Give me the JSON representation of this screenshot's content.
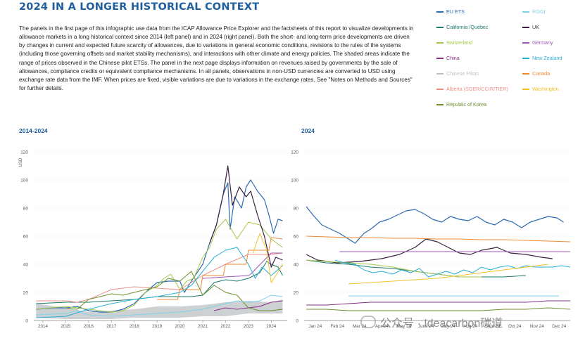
{
  "page": {
    "title": "2024 IN A LONGER HISTORICAL CONTEXT",
    "intro": "The panels in the first page of this infographic use data from the ICAP Allowance Price Explorer and the factsheets of this report to visualize developments in allowance markets in a long historical context since 2014 (left panel) and in 2024 (right panel). Both the short- and long-term price developments are driven by changes in current and expected future scarcity of allowances, due to variations in general economic conditions, revisions to the rules of the systems (including those governing offsets and market stability mechanisms), and interactions with other climate and energy policies. The shaded areas indicate the range of prices observed in the Chinese pilot ETSs. The panel in the next page displays information on revenues raised by governments by the sale of allowances, compliance credits or equivalent compliance mechanisms. In all panels, observations in non-USD currencies are converted to USD using exchange rate data from the IMF. When prices are fixed, visible variations are due to variations in the exchange rates. See \"Notes on Methods and Sources\" for further details."
  },
  "watermark": "公众号 · Ideacarbon碳道",
  "legend": [
    {
      "label": "EU ETS",
      "color": "#2a6bb0"
    },
    {
      "label": "RGGI",
      "color": "#7fd3e8"
    },
    {
      "label": "California /Québec",
      "color": "#1b7a6a"
    },
    {
      "label": "UK",
      "color": "#3a1f3f"
    },
    {
      "label": "Switzerland",
      "color": "#a6c84a"
    },
    {
      "label": "Germany",
      "color": "#9c55b4"
    },
    {
      "label": "China",
      "color": "#8a2d84"
    },
    {
      "label": "New Zealand",
      "color": "#27aed6"
    },
    {
      "label": "Chinese Pilots",
      "color": "#bcc1c4"
    },
    {
      "label": "Canada",
      "color": "#ee8a35"
    },
    {
      "label": "Alberta (SGER/CCIR/TIER)",
      "color": "#ec8f88"
    },
    {
      "label": "Washington",
      "color": "#f2c32a"
    },
    {
      "label": "Republic of Korea",
      "color": "#6e8f2c"
    }
  ],
  "chart_data": [
    {
      "type": "line",
      "title": "2014-2024",
      "ylabel": "USD",
      "ylim": [
        0,
        120
      ],
      "yticks": [
        0,
        20,
        40,
        60,
        80,
        100,
        120
      ],
      "xlim": [
        2013.6,
        2024.7
      ],
      "xticks": [
        "2014",
        "2015",
        "2016",
        "2017",
        "2018",
        "2019",
        "2020",
        "2021",
        "2022",
        "2023",
        "2024"
      ],
      "grid": true,
      "shaded_band": {
        "name": "Chinese Pilots",
        "x": [
          2013.7,
          2015,
          2016,
          2017,
          2018,
          2019,
          2020,
          2021,
          2022,
          2023,
          2024,
          2024.5
        ],
        "low": [
          2,
          1,
          1,
          1,
          2,
          2,
          2,
          3,
          3,
          5,
          5,
          5
        ],
        "high": [
          12,
          9,
          6,
          7,
          8,
          10,
          10,
          11,
          13,
          14,
          13,
          15
        ]
      },
      "series": [
        {
          "name": "EU ETS",
          "x": [
            2013.7,
            2014.5,
            2015,
            2015.5,
            2016,
            2016.5,
            2017,
            2017.5,
            2018,
            2018.3,
            2018.7,
            2019,
            2019.5,
            2020,
            2020.2,
            2020.5,
            2021,
            2021.3,
            2021.6,
            2021.9,
            2022.1,
            2022.2,
            2022.4,
            2022.7,
            2022.9,
            2023.1,
            2023.4,
            2023.7,
            2023.9,
            2024.1,
            2024.3,
            2024.5
          ],
          "y": [
            8,
            9,
            9,
            10,
            7,
            6,
            6,
            8,
            12,
            17,
            23,
            27,
            28,
            28,
            20,
            28,
            40,
            55,
            68,
            90,
            98,
            65,
            88,
            80,
            95,
            100,
            92,
            86,
            75,
            62,
            72,
            71
          ]
        },
        {
          "name": "California /Québec",
          "x": [
            2013.7,
            2015,
            2016,
            2017,
            2018,
            2019,
            2020,
            2020.5,
            2021,
            2021.5,
            2022,
            2022.5,
            2023,
            2023.5,
            2023.8,
            2024,
            2024.3,
            2024.5
          ],
          "y": [
            12,
            13,
            13,
            14,
            15,
            17,
            17,
            17,
            18,
            27,
            29,
            28,
            30,
            34,
            42,
            40,
            38,
            32
          ]
        },
        {
          "name": "Switzerland",
          "x": [
            2013.7,
            2015,
            2016,
            2017,
            2017.5,
            2018,
            2018.5,
            2019,
            2019.3,
            2019.6,
            2020,
            2020.3,
            2020.6,
            2021,
            2021.3,
            2021.6,
            2022,
            2022.5,
            2023,
            2023.5,
            2024,
            2024.5
          ],
          "y": [
            8,
            10,
            8,
            6,
            7,
            11,
            20,
            25,
            30,
            33,
            22,
            28,
            30,
            45,
            52,
            65,
            72,
            58,
            70,
            68,
            58,
            52
          ]
        },
        {
          "name": "China",
          "x": [
            2021.5,
            2022,
            2022.5,
            2023,
            2023.5,
            2024,
            2024.5
          ],
          "y": [
            7,
            9,
            8,
            9,
            10,
            13,
            14
          ]
        },
        {
          "name": "Alberta (SGER/CCIR/TIER)",
          "x": [
            2013.7,
            2015,
            2015.5,
            2016,
            2017,
            2018,
            2019,
            2020,
            2021,
            2022,
            2023,
            2024,
            2024.5
          ],
          "y": [
            14,
            14,
            13,
            15,
            22,
            24,
            23,
            22,
            32,
            40,
            47,
            47,
            48
          ]
        },
        {
          "name": "Republic of Korea",
          "x": [
            2015,
            2015.5,
            2016,
            2017,
            2017.5,
            2018,
            2019,
            2019.5,
            2020,
            2020.5,
            2021,
            2021.5,
            2022,
            2022.5,
            2023,
            2023.5,
            2024,
            2024.5
          ],
          "y": [
            9,
            8,
            15,
            19,
            18,
            20,
            24,
            30,
            28,
            35,
            18,
            25,
            20,
            18,
            9,
            7,
            7,
            8
          ]
        },
        {
          "name": "RGGI",
          "x": [
            2013.7,
            2015,
            2015.5,
            2016,
            2017,
            2018,
            2019,
            2020,
            2021,
            2021.5,
            2022,
            2022.5,
            2023,
            2023.5,
            2024,
            2024.5
          ],
          "y": [
            4,
            5,
            7,
            4,
            3,
            4,
            5,
            6,
            8,
            10,
            12,
            14,
            13,
            14,
            18,
            17
          ]
        },
        {
          "name": "UK",
          "x": [
            2021.3,
            2021.6,
            2021.9,
            2022.1,
            2022.3,
            2022.6,
            2022.9,
            2023.1,
            2023.4,
            2023.7,
            2024,
            2024.2,
            2024.5
          ],
          "y": [
            55,
            68,
            90,
            110,
            82,
            95,
            88,
            92,
            75,
            60,
            38,
            45,
            43
          ]
        },
        {
          "name": "Germany",
          "x": [
            2021,
            2022,
            2023,
            2023.1,
            2024,
            2024.5
          ],
          "y": [
            30,
            31,
            32,
            33,
            48,
            48
          ]
        },
        {
          "name": "New Zealand",
          "x": [
            2013.7,
            2015,
            2016,
            2017,
            2018,
            2019,
            2020,
            2020.5,
            2021,
            2021.5,
            2022,
            2022.5,
            2023,
            2023.3,
            2023.6,
            2024,
            2024.5
          ],
          "y": [
            2,
            3,
            8,
            12,
            15,
            17,
            20,
            25,
            35,
            45,
            50,
            52,
            40,
            30,
            38,
            32,
            39
          ]
        },
        {
          "name": "Canada",
          "x": [
            2019,
            2019.9,
            2020,
            2020.9,
            2021,
            2021.9,
            2022,
            2022.9,
            2023,
            2023.9,
            2024,
            2024.5
          ],
          "y": [
            15,
            15,
            22,
            22,
            32,
            32,
            40,
            40,
            50,
            50,
            59,
            58
          ]
        },
        {
          "name": "Washington",
          "x": [
            2023.2,
            2023.5,
            2023.8,
            2024,
            2024.2,
            2024.5
          ],
          "y": [
            48,
            62,
            50,
            27,
            32,
            40
          ]
        }
      ]
    },
    {
      "type": "line",
      "title": "2024",
      "ylim": [
        0,
        120
      ],
      "yticks": [
        0,
        20,
        40,
        60,
        80,
        100,
        120
      ],
      "xlim": [
        0,
        12
      ],
      "xticks": [
        "Jan 24",
        "Feb 24",
        "Mar 24",
        "Apr 24",
        "May 24",
        "June 24",
        "July 24",
        "Aug 24",
        "Sept 24",
        "Oct 24",
        "Nov 24",
        "Dec 24"
      ],
      "grid": true,
      "series": [
        {
          "name": "EU ETS",
          "x": [
            0.1,
            0.4,
            0.8,
            1.2,
            1.6,
            2.0,
            2.3,
            2.7,
            3.0,
            3.4,
            3.8,
            4.2,
            4.6,
            5.0,
            5.4,
            5.8,
            6.2,
            6.6,
            7.0,
            7.4,
            7.8,
            8.2,
            8.6,
            9.0,
            9.4,
            9.8,
            10.2,
            10.6,
            11.0,
            11.4,
            11.7
          ],
          "y": [
            81,
            75,
            68,
            65,
            62,
            58,
            55,
            62,
            65,
            70,
            72,
            75,
            78,
            79,
            76,
            72,
            70,
            74,
            72,
            71,
            74,
            70,
            68,
            72,
            70,
            66,
            70,
            72,
            74,
            73,
            70
          ]
        },
        {
          "name": "UK",
          "x": [
            0.1,
            0.6,
            1.5,
            2.5,
            3.5,
            4.3,
            5.0,
            5.5,
            6.0,
            6.5,
            7.0,
            7.5,
            8.0,
            8.7,
            9.3,
            10.0,
            10.7,
            11.2
          ],
          "y": [
            47,
            43,
            41,
            42,
            44,
            47,
            52,
            58,
            56,
            52,
            48,
            47,
            50,
            52,
            48,
            47,
            45,
            44
          ]
        },
        {
          "name": "California /Québec",
          "x": [
            0.1,
            1,
            2,
            3,
            4,
            5,
            6,
            7,
            8,
            9,
            10
          ],
          "y": [
            43,
            41,
            40,
            38,
            37,
            35,
            33,
            31,
            31,
            31,
            32
          ]
        },
        {
          "name": "Switzerland",
          "x": [
            0.1,
            1,
            2,
            3,
            4,
            5,
            6,
            7,
            8
          ],
          "y": [
            43,
            42,
            41,
            40,
            38,
            35,
            33,
            31,
            31
          ]
        },
        {
          "name": "Canada",
          "x": [
            0.1,
            1,
            2,
            3,
            4,
            5,
            6,
            7,
            8,
            9,
            10,
            11,
            12
          ],
          "y": [
            60,
            59.5,
            59,
            59,
            58.5,
            58.5,
            58,
            58,
            57.5,
            57.5,
            57,
            56.5,
            56
          ]
        },
        {
          "name": "Germany",
          "x": [
            1.6,
            12
          ],
          "y": [
            49,
            49
          ]
        },
        {
          "name": "New Zealand",
          "x": [
            1.4,
            1.8,
            2.3,
            2.7,
            3.1,
            3.5,
            4.0,
            4.4,
            4.8,
            5.2,
            5.6,
            6.0,
            6.4,
            6.8,
            7.2,
            7.6,
            8.0,
            8.4,
            8.8,
            9.2,
            9.6,
            10.0,
            10.4,
            10.8,
            11.2,
            11.6,
            12.0
          ],
          "y": [
            43,
            41,
            40,
            36,
            34,
            35,
            33,
            36,
            34,
            37,
            31,
            33,
            35,
            33,
            36,
            34,
            38,
            36,
            38,
            39,
            37,
            39,
            38,
            38,
            38,
            39,
            38
          ]
        },
        {
          "name": "Washington",
          "x": [
            2.0,
            3,
            4,
            5,
            6,
            7,
            8,
            9,
            10,
            11
          ],
          "y": [
            26,
            27,
            28,
            29,
            30,
            32,
            34,
            36,
            38,
            40
          ]
        },
        {
          "name": "RGGI",
          "x": [
            2.0,
            11.5
          ],
          "y": [
            17.5,
            17.5
          ]
        },
        {
          "name": "China",
          "x": [
            0.1,
            1,
            2,
            3,
            4,
            5,
            6,
            7,
            8,
            9,
            10,
            11,
            12
          ],
          "y": [
            11,
            11,
            12,
            13,
            13,
            13,
            13,
            13,
            13,
            13,
            13,
            14,
            14
          ]
        },
        {
          "name": "Republic of Korea",
          "x": [
            0.1,
            1,
            2,
            3,
            4,
            5,
            6,
            7,
            8,
            9,
            10,
            11,
            12
          ],
          "y": [
            8,
            8,
            7,
            7,
            7,
            7,
            7,
            7,
            7,
            8,
            8,
            9,
            8
          ]
        }
      ]
    }
  ]
}
